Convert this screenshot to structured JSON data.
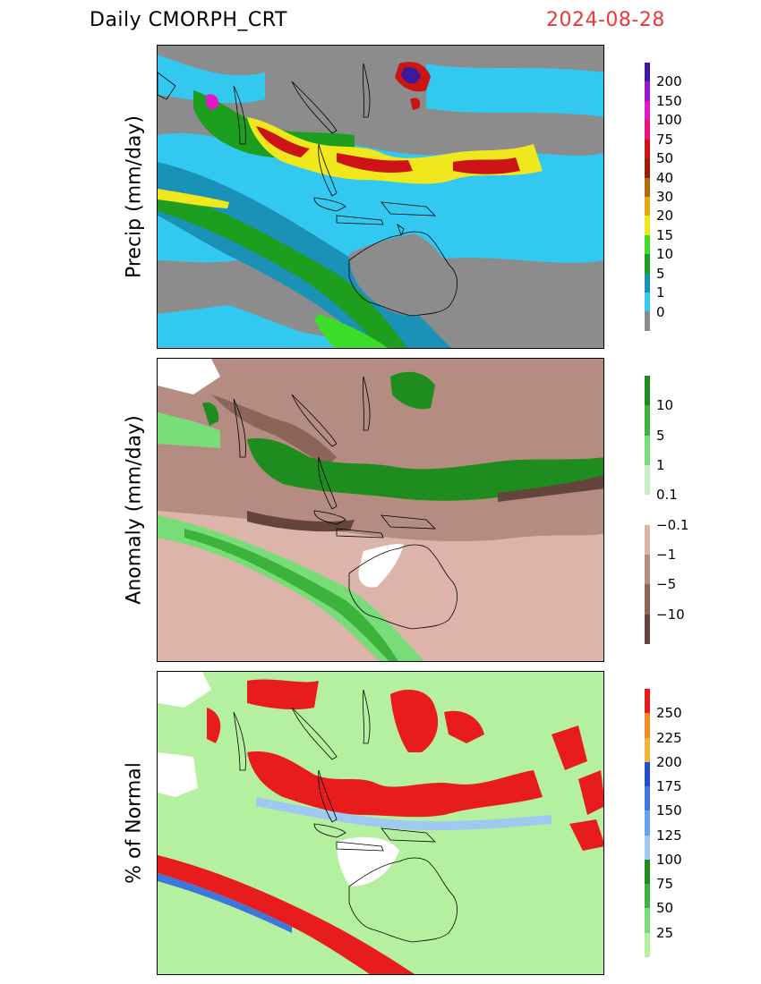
{
  "header": {
    "title": "Daily  CMORPH_CRT",
    "date": "2024-08-28"
  },
  "panels": [
    {
      "ylabel": "Precip  (mm/day)",
      "colorbar": {
        "labels": [
          "200",
          "150",
          "100",
          "75",
          "50",
          "40",
          "30",
          "20",
          "15",
          "10",
          "5",
          "1",
          "0"
        ],
        "colors": [
          "#3c1a9c",
          "#9a16c8",
          "#e01ac8",
          "#e8147a",
          "#cc1414",
          "#9a1e08",
          "#b06a0a",
          "#e8a614",
          "#f0e81c",
          "#3cdc28",
          "#1e9e1e",
          "#1a92b8",
          "#32c8f0",
          "#8c8c8c"
        ]
      },
      "map_colors": {
        "background": "#8c8c8c",
        "light": "#32c8f0",
        "mid": "#1a92b8",
        "green": "#1e9e1e",
        "lightgreen": "#3cdc28",
        "yellow": "#f0e81c",
        "red": "#cc1414",
        "darkred": "#9a1e08",
        "magenta": "#e01ac8",
        "purple": "#3c1a9c"
      }
    },
    {
      "ylabel": "Anomaly  (mm/day)",
      "colorbar": {
        "labels": [
          "10",
          "5",
          "1",
          "0.1",
          "−0.1",
          "−1",
          "−5",
          "−10"
        ],
        "colors": [
          "#1e8c1e",
          "#3cb43c",
          "#78dc78",
          "#c8f0c8",
          "#ffffff",
          "#dcb4aa",
          "#b48c82",
          "#8c645a",
          "#64443c"
        ]
      },
      "map_colors": {
        "background": "#b48c82",
        "light": "#dcb4aa",
        "dark": "#8c645a",
        "darker": "#64443c",
        "green": "#1e8c1e",
        "midgreen": "#3cb43c",
        "lightgreen": "#78dc78",
        "white": "#ffffff"
      }
    },
    {
      "ylabel": "% of Normal",
      "colorbar": {
        "labels": [
          "250",
          "225",
          "200",
          "175",
          "150",
          "125",
          "100",
          "75",
          "50",
          "25"
        ],
        "colors": [
          "#e81c1c",
          "#f08c28",
          "#f0b43c",
          "#1e50c8",
          "#3c78dc",
          "#64a0f0",
          "#a0c8f0",
          "#1e8c1e",
          "#3cb43c",
          "#78dc78",
          "#b4f0a0"
        ]
      },
      "map_colors": {
        "background": "#b4f0a0",
        "red": "#e81c1c",
        "blue": "#3c78dc",
        "lightblue": "#a0c8f0",
        "green": "#3cb43c",
        "white": "#ffffff"
      }
    }
  ]
}
